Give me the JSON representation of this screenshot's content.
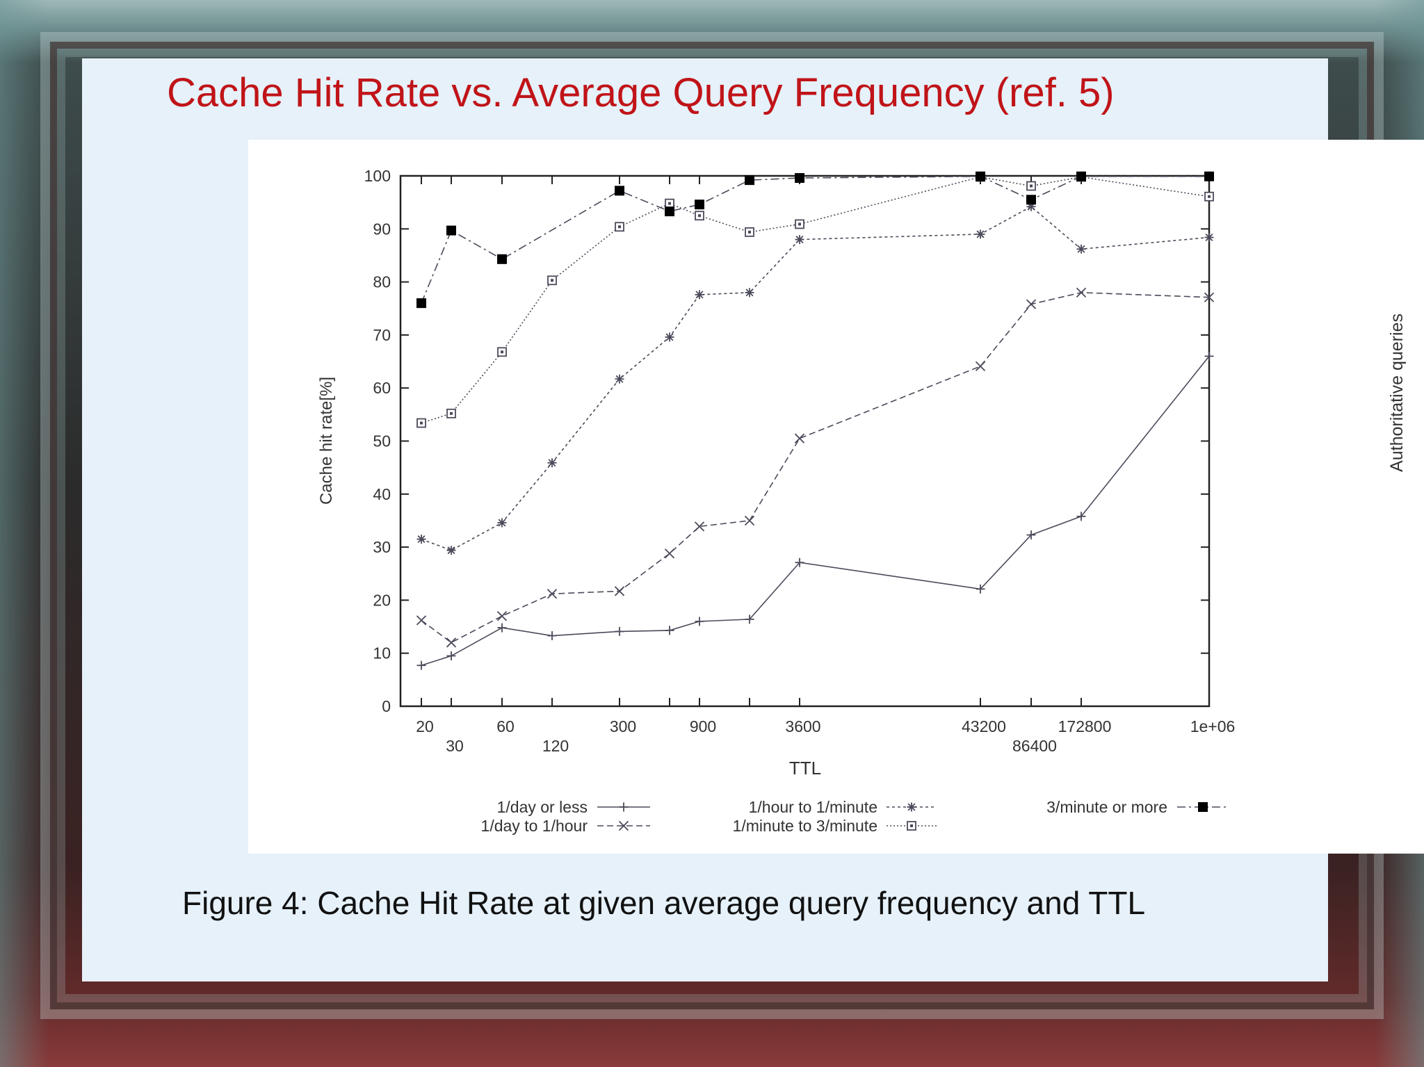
{
  "slide": {
    "title": "Cache Hit Rate vs. Average Query Frequency (ref. 5)",
    "caption": "Figure 4: Cache Hit Rate at given average query frequency and TTL",
    "side_label": "Authoritative queries"
  },
  "colors": {
    "title": "#c01418",
    "series_line": "#4a4a5a",
    "slide_bg": "#e6f1fa"
  },
  "chart_data": {
    "type": "line",
    "title": "",
    "xlabel": "TTL",
    "ylabel": "Cache hit rate[%]",
    "x_scale": "categorical-log-like",
    "x": [
      20,
      30,
      60,
      120,
      300,
      600,
      900,
      1800,
      3600,
      43200,
      86400,
      172800,
      1000000
    ],
    "x_tick_labels": [
      {
        "x": 20,
        "label": "20",
        "row": 1
      },
      {
        "x": 30,
        "label": "30",
        "row": 2
      },
      {
        "x": 60,
        "label": "60",
        "row": 1
      },
      {
        "x": 120,
        "label": "120",
        "row": 2
      },
      {
        "x": 300,
        "label": "300",
        "row": 1
      },
      {
        "x": 900,
        "label": "900",
        "row": 1
      },
      {
        "x": 3600,
        "label": "3600",
        "row": 1
      },
      {
        "x": 43200,
        "label": "43200",
        "row": 1
      },
      {
        "x": 86400,
        "label": "86400",
        "row": 2
      },
      {
        "x": 172800,
        "label": "172800",
        "row": 1
      },
      {
        "x": 1000000,
        "label": "1e+06",
        "row": 1
      }
    ],
    "ylim": [
      0,
      100
    ],
    "y_ticks": [
      0,
      10,
      20,
      30,
      40,
      50,
      60,
      70,
      80,
      90,
      100
    ],
    "grid": false,
    "legend_position": "bottom",
    "series": [
      {
        "name": "1/day or less",
        "marker": "plus",
        "dash": "solid",
        "values": [
          7.7,
          9.5,
          14.8,
          13.3,
          14.1,
          14.3,
          16.0,
          16.4,
          27.1,
          22.1,
          32.3,
          35.8,
          66.0
        ]
      },
      {
        "name": "1/day to 1/hour",
        "marker": "cross",
        "dash": "dashed",
        "values": [
          16.2,
          12.0,
          17.0,
          21.2,
          21.7,
          28.8,
          33.9,
          35.0,
          50.5,
          64.1,
          75.8,
          78.0,
          77.1
        ]
      },
      {
        "name": "1/hour to 1/minute",
        "marker": "asterisk",
        "dash": "dotted",
        "values": [
          31.5,
          29.4,
          34.6,
          45.9,
          61.7,
          69.6,
          77.6,
          78.0,
          88.0,
          89.0,
          94.2,
          86.2,
          88.4
        ]
      },
      {
        "name": "1/minute to 3/minute",
        "marker": "open-square",
        "dash": "fine-dotted",
        "values": [
          53.4,
          55.2,
          66.8,
          80.3,
          90.4,
          94.8,
          92.5,
          89.4,
          90.9,
          99.8,
          98.1,
          99.8,
          96.1
        ]
      },
      {
        "name": "3/minute or more",
        "marker": "filled-square",
        "dash": "dash-dot",
        "values": [
          76.0,
          89.7,
          84.3,
          null,
          97.2,
          93.3,
          94.6,
          99.2,
          99.6,
          99.9,
          95.5,
          99.9,
          99.9
        ]
      }
    ]
  }
}
